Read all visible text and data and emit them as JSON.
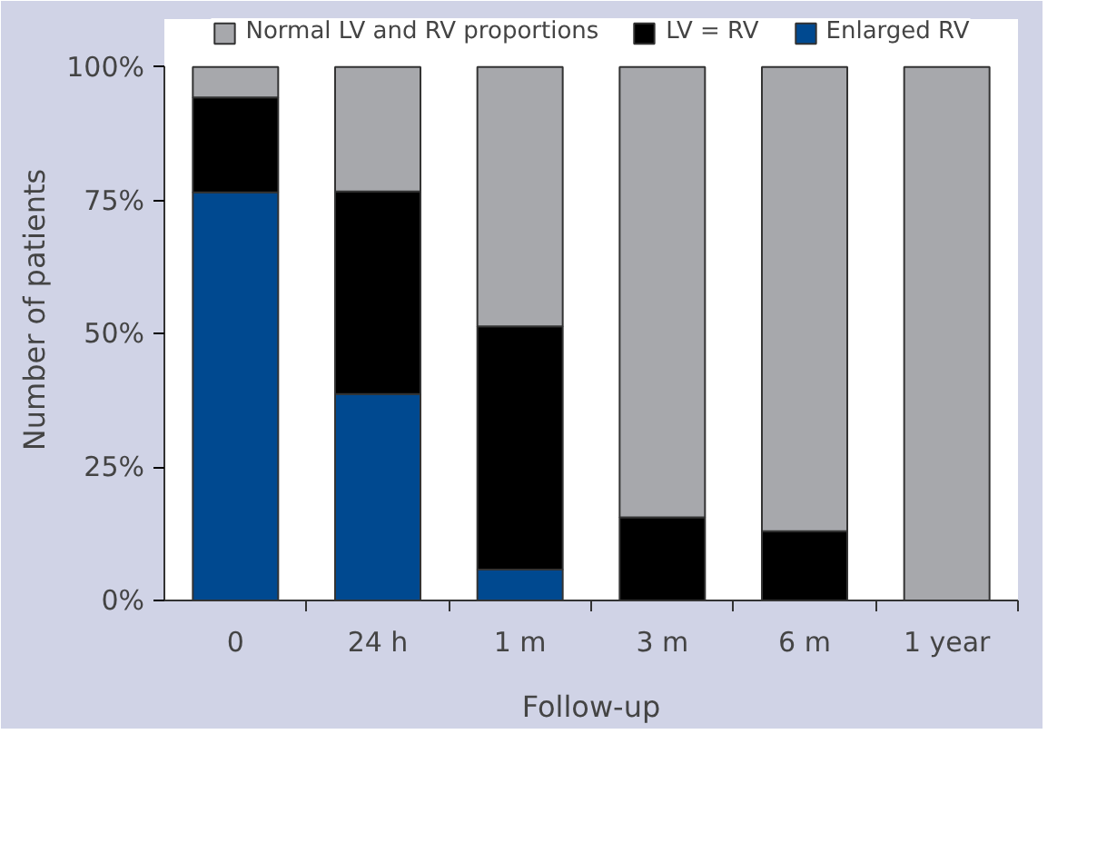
{
  "chart_data": {
    "type": "bar",
    "stacked": true,
    "xlabel": "Follow-up",
    "ylabel": "Number of patients",
    "categories": [
      "0",
      "24 h",
      "1 m",
      "3 m",
      "6 m",
      "1 year"
    ],
    "series": [
      {
        "name": "Enlarged RV",
        "color": "#004990",
        "values": [
          76.5,
          38.7,
          5.8,
          0,
          0,
          0
        ]
      },
      {
        "name": "LV = RV",
        "color": "#000000",
        "values": [
          17.8,
          38,
          45.6,
          15.6,
          13,
          0
        ]
      },
      {
        "name": "Normal LV and RV proportions",
        "color": "#a7a8ac",
        "values": [
          5.7,
          23.3,
          48.6,
          84.4,
          87,
          100
        ]
      }
    ],
    "ylim": [
      0,
      100
    ],
    "yticks": [
      {
        "value": 0,
        "label": "0%"
      },
      {
        "value": 25,
        "label": "25%"
      },
      {
        "value": 50,
        "label": "50%"
      },
      {
        "value": 75,
        "label": "75%"
      },
      {
        "value": 100,
        "label": "100%"
      }
    ],
    "grid": false,
    "legend": "top"
  }
}
